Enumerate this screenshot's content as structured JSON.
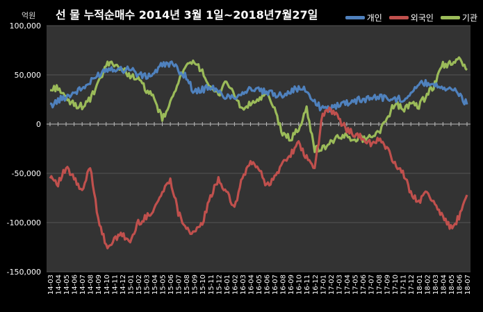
{
  "header": {
    "title": "선 물 누적순매수 2014년 3월 1일~2018년7월27일",
    "unit": "억원"
  },
  "legend": [
    {
      "name": "개인",
      "color": "#4f81bd"
    },
    {
      "name": "외국인",
      "color": "#c0504d"
    },
    {
      "name": "기관",
      "color": "#9bbb59"
    }
  ],
  "chart_data": {
    "type": "line",
    "ylim": [
      -150000,
      100000
    ],
    "yticks": [
      100000,
      50000,
      0,
      -50000,
      -100000,
      -150000
    ],
    "ytick_labels": [
      "100,000",
      "50,000",
      "0",
      "-50,000",
      "-100,000",
      "-150,000"
    ],
    "xtick_labels": [
      "14-03",
      "14-04",
      "14-05",
      "14-06",
      "14-07",
      "14-08",
      "14-09",
      "14-10",
      "14-11",
      "14-12",
      "15-01",
      "15-02",
      "15-03",
      "15-04",
      "15-05",
      "15-06",
      "15-07",
      "15-08",
      "15-09",
      "15-10",
      "15-11",
      "15-12",
      "16-01",
      "16-02",
      "16-03",
      "16-04",
      "16-05",
      "16-06",
      "16-07",
      "16-08",
      "16-09",
      "16-10",
      "16-11",
      "16-12",
      "17-01",
      "17-02",
      "17-03",
      "17-04",
      "17-05",
      "17-06",
      "17-07",
      "17-08",
      "17-09",
      "17-10",
      "17-11",
      "17-12",
      "18-01",
      "18-02",
      "18-03",
      "18-04",
      "18-05",
      "18-06",
      "18-07"
    ],
    "grid": true,
    "legend_position": "top-right",
    "background": "#333333",
    "series": [
      {
        "name": "개인",
        "color": "#4f81bd",
        "values": [
          18000,
          24000,
          28000,
          32000,
          36000,
          42000,
          50000,
          56000,
          57000,
          55000,
          57000,
          50000,
          48000,
          52000,
          60000,
          62000,
          55000,
          48000,
          32000,
          35000,
          38000,
          32000,
          28000,
          28000,
          32000,
          36000,
          34000,
          32000,
          30000,
          30000,
          34000,
          36000,
          34000,
          22000,
          15000,
          16000,
          20000,
          22000,
          24000,
          25000,
          27000,
          28000,
          26000,
          25000,
          26000,
          32000,
          40000,
          42000,
          40000,
          38000,
          36000,
          30000,
          20000
        ]
      },
      {
        "name": "외국인",
        "color": "#c0504d",
        "values": [
          -52000,
          -60000,
          -45000,
          -55000,
          -70000,
          -42000,
          -95000,
          -125000,
          -118000,
          -112000,
          -120000,
          -100000,
          -95000,
          -85000,
          -70000,
          -55000,
          -90000,
          -105000,
          -112000,
          -100000,
          -75000,
          -55000,
          -70000,
          -85000,
          -55000,
          -38000,
          -45000,
          -62000,
          -55000,
          -40000,
          -30000,
          -20000,
          -35000,
          -45000,
          10000,
          15000,
          5000,
          -5000,
          -10000,
          -15000,
          -20000,
          -15000,
          -25000,
          -40000,
          -50000,
          -70000,
          -78000,
          -70000,
          -80000,
          -95000,
          -105000,
          -95000,
          -72000
        ]
      },
      {
        "name": "기관",
        "color": "#9bbb59",
        "values": [
          34000,
          38000,
          25000,
          20000,
          18000,
          25000,
          40000,
          60000,
          62000,
          55000,
          50000,
          45000,
          35000,
          25000,
          5000,
          20000,
          45000,
          58000,
          62000,
          55000,
          35000,
          30000,
          45000,
          28000,
          15000,
          20000,
          25000,
          30000,
          15000,
          -10000,
          -15000,
          -5000,
          15000,
          -25000,
          -25000,
          -18000,
          -14000,
          -12000,
          -15000,
          -15000,
          -12000,
          -8000,
          5000,
          22000,
          15000,
          20000,
          18000,
          30000,
          40000,
          60000,
          62000,
          65000,
          55000
        ]
      }
    ]
  }
}
